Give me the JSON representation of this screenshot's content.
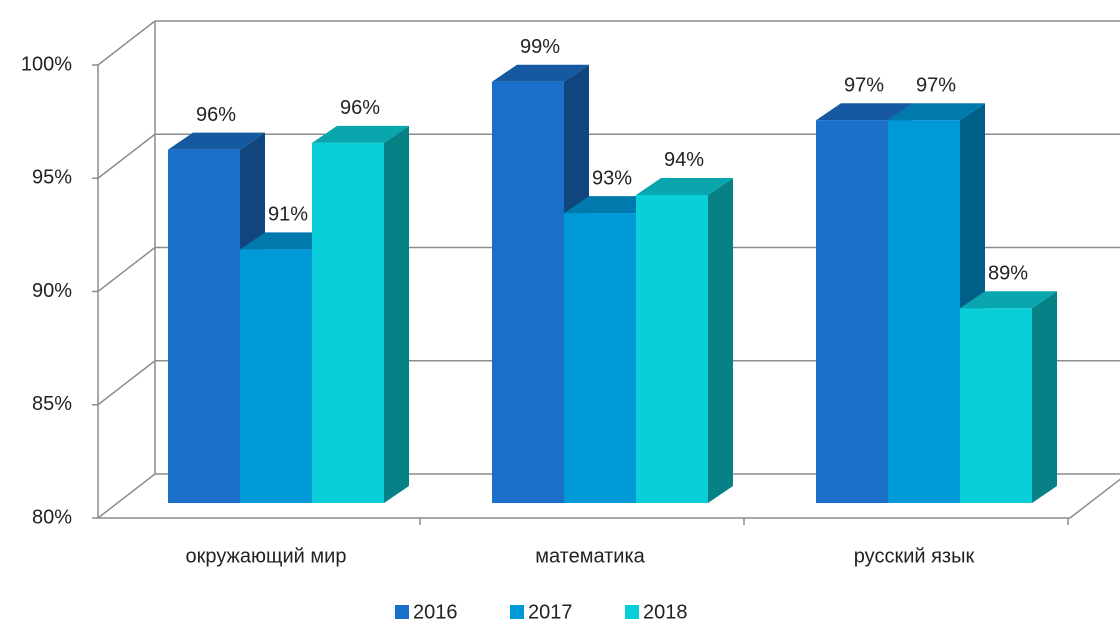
{
  "chart_data": {
    "type": "bar3d",
    "categories": [
      "окружающий мир",
      "математика",
      "русский язык"
    ],
    "series": [
      {
        "name": "2016",
        "color": "#1a6fc9",
        "values": [
          95.6,
          98.6,
          96.9
        ],
        "value_labels": [
          "96%",
          "99%",
          "97%"
        ]
      },
      {
        "name": "2017",
        "color": "#0099d8",
        "values": [
          91.2,
          92.8,
          96.9
        ],
        "value_labels": [
          "91%",
          "93%",
          "97%"
        ]
      },
      {
        "name": "2018",
        "color": "#0bcfd8",
        "values": [
          95.9,
          93.6,
          88.6
        ],
        "value_labels": [
          "96%",
          "94%",
          "89%"
        ]
      }
    ],
    "ylim": [
      80,
      100
    ],
    "yticks": [
      {
        "value": 80,
        "label": "80%"
      },
      {
        "value": 85,
        "label": "85%"
      },
      {
        "value": 90,
        "label": "90%"
      },
      {
        "value": 95,
        "label": "95%"
      },
      {
        "value": 100,
        "label": "100%"
      }
    ],
    "grid": true,
    "legend": "bottom"
  }
}
